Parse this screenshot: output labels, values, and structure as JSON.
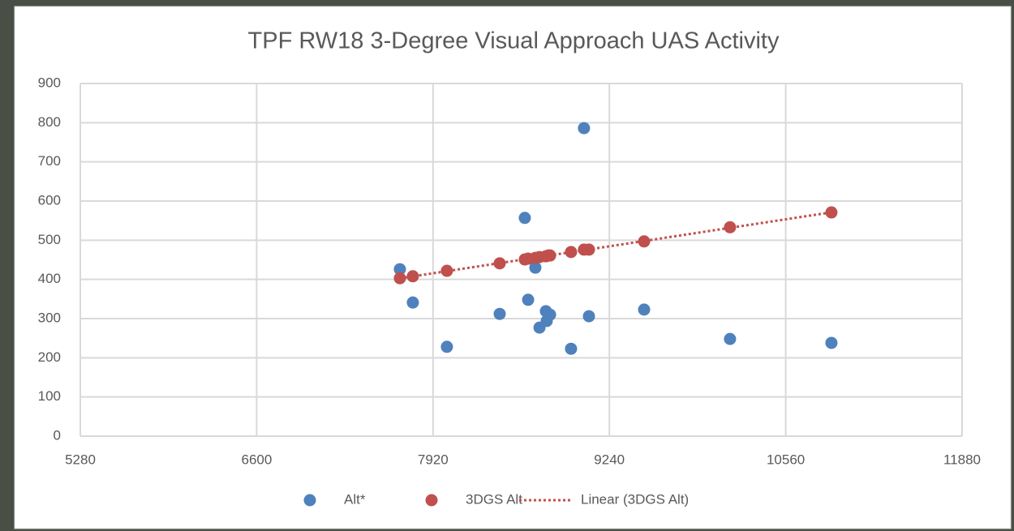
{
  "chart_data": {
    "type": "scatter",
    "title": "TPF RW18 3-Degree Visual Approach UAS Activity",
    "xlim": [
      5280,
      11880
    ],
    "xticks": [
      5280,
      6600,
      7920,
      9240,
      10560,
      11880
    ],
    "ylim": [
      0,
      900
    ],
    "yticks": [
      0,
      100,
      200,
      300,
      400,
      500,
      600,
      700,
      800,
      900
    ],
    "grid": true,
    "legend": "bottom",
    "series": [
      {
        "name": "Alt*",
        "color": "#4f81bd",
        "x": [
          7672,
          7769,
          8024,
          8419,
          8607,
          8632,
          8686,
          8717,
          8765,
          8771,
          8796,
          8953,
          9050,
          9087,
          9500,
          10143,
          10902
        ],
        "values": [
          426,
          341,
          228,
          312,
          557,
          348,
          430,
          277,
          319,
          294,
          310,
          223,
          786,
          306,
          323,
          248,
          238
        ]
      },
      {
        "name": "3DGS Alt",
        "color": "#c0504d",
        "x": [
          7672,
          7769,
          8024,
          8419,
          8607,
          8632,
          8686,
          8717,
          8765,
          8784,
          8796,
          8953,
          9050,
          9087,
          9500,
          10143,
          10902
        ],
        "values": [
          403,
          408,
          422,
          441,
          451,
          453,
          455,
          457,
          459,
          461,
          461,
          470,
          476,
          476,
          497,
          533,
          571
        ]
      }
    ],
    "trendline": {
      "name": "Linear (3DGS Alt)",
      "color": "#c0504d",
      "series": 1
    }
  }
}
